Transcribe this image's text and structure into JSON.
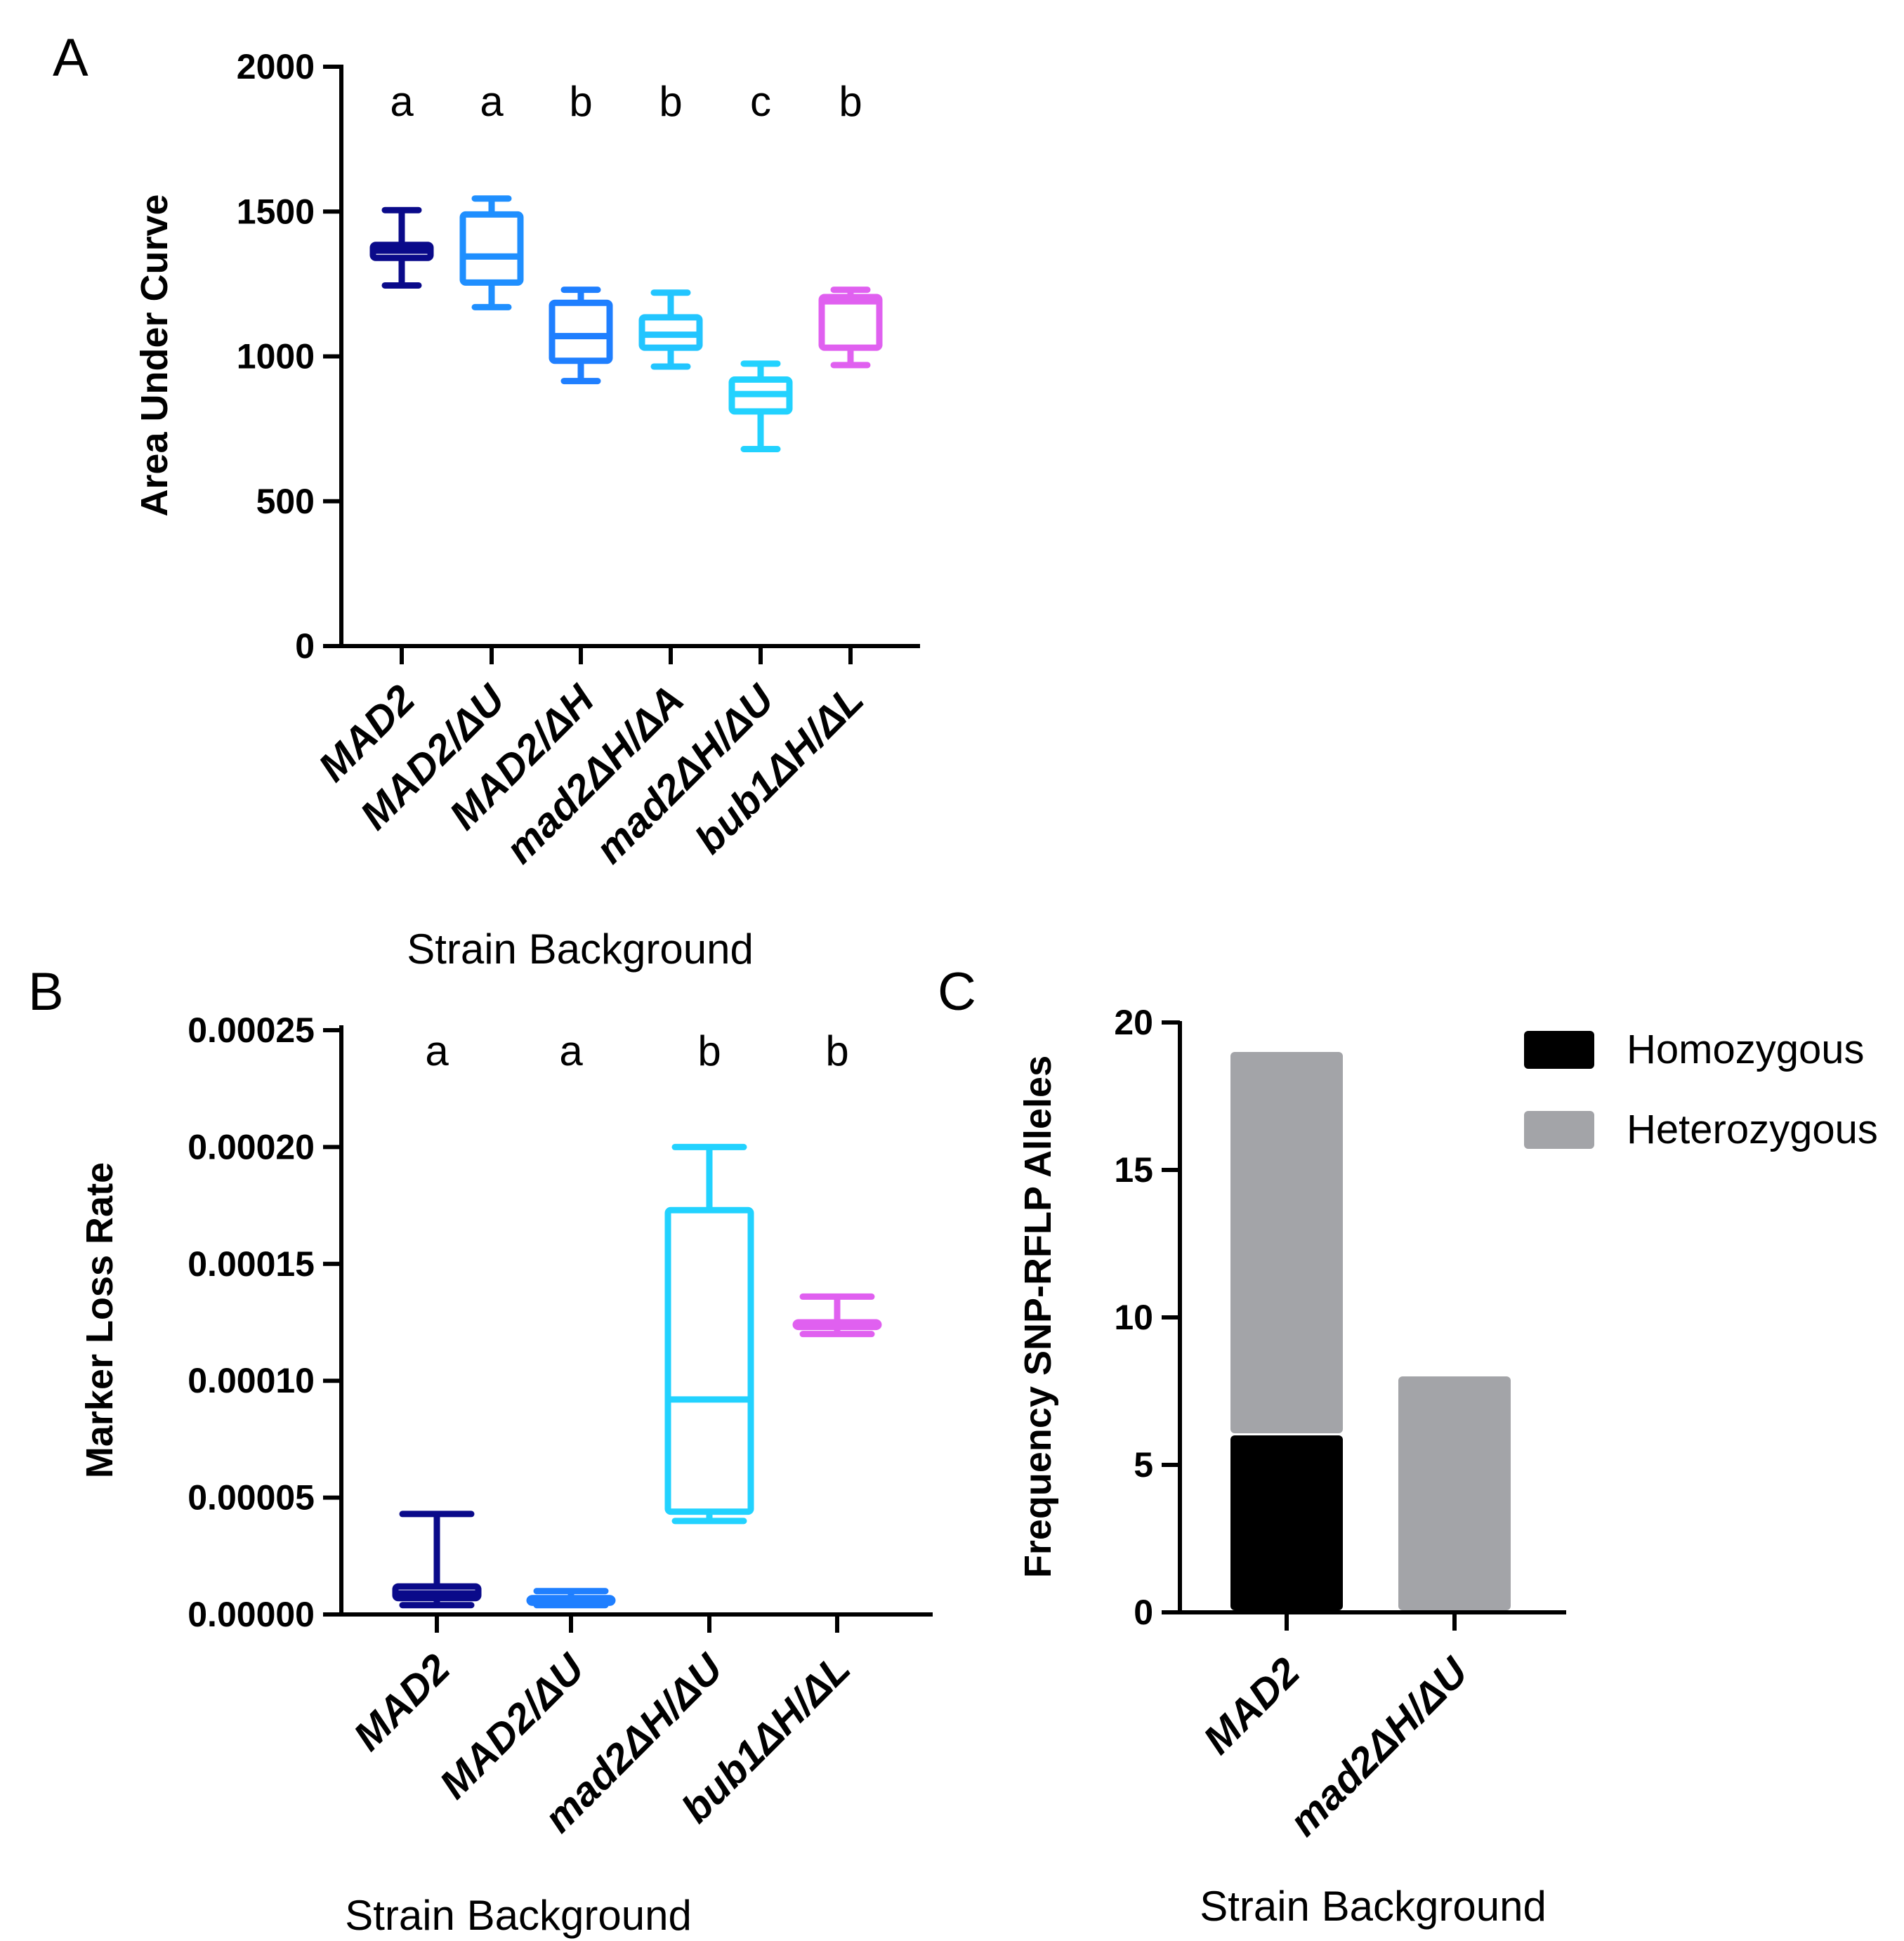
{
  "chart_data": [
    {
      "panel": "A",
      "type": "box",
      "ylabel": "Area Under Curve",
      "xlabel": "Strain Background",
      "ylim": [
        0,
        2000
      ],
      "yticks": [
        "0",
        "500",
        "1000",
        "1500",
        "2000"
      ],
      "categories": [
        "MAD2",
        "MAD2/ΔU",
        "MAD2/ΔH",
        "mad2ΔH/ΔA",
        "mad2ΔH/ΔU",
        "bub1ΔH/ΔL"
      ],
      "letters": [
        "a",
        "a",
        "b",
        "b",
        "c",
        "b"
      ],
      "colors": [
        "#0a0a8a",
        "#1f8fff",
        "#1f7fff",
        "#22c5ff",
        "#22d2ff",
        "#e060f0"
      ],
      "boxes": [
        {
          "min": 1245,
          "q1": 1340,
          "median": 1365,
          "q3": 1385,
          "max": 1505
        },
        {
          "min": 1170,
          "q1": 1255,
          "median": 1345,
          "q3": 1490,
          "max": 1545
        },
        {
          "min": 915,
          "q1": 985,
          "median": 1070,
          "q3": 1185,
          "max": 1230
        },
        {
          "min": 965,
          "q1": 1030,
          "median": 1075,
          "q3": 1135,
          "max": 1220
        },
        {
          "min": 680,
          "q1": 810,
          "median": 870,
          "q3": 920,
          "max": 975
        },
        {
          "min": 970,
          "q1": 1030,
          "median": 1190,
          "q3": 1205,
          "max": 1230
        }
      ]
    },
    {
      "panel": "B",
      "type": "box",
      "ylabel": "Marker Loss Rate",
      "xlabel": "Strain Background",
      "ylim": [
        0,
        0.00025
      ],
      "yticks": [
        "0.00000",
        "0.00005",
        "0.00010",
        "0.00015",
        "0.00020",
        "0.00025"
      ],
      "categories": [
        "MAD2",
        "MAD2/ΔU",
        "mad2ΔH/ΔU",
        "bub1ΔH/ΔL"
      ],
      "letters": [
        "a",
        "a",
        "b",
        "b"
      ],
      "colors": [
        "#0a0a8a",
        "#1f7fff",
        "#22d2ff",
        "#e060f0"
      ],
      "boxes": [
        {
          "min": 4e-06,
          "q1": 7e-06,
          "median": 9e-06,
          "q3": 1.2e-05,
          "max": 4.3e-05
        },
        {
          "min": 4e-06,
          "q1": 5e-06,
          "median": 6e-06,
          "q3": 7e-06,
          "max": 1e-05
        },
        {
          "min": 4e-05,
          "q1": 4.4e-05,
          "median": 9.2e-05,
          "q3": 0.000173,
          "max": 0.0002
        },
        {
          "min": 0.00012,
          "q1": 0.000123,
          "median": 0.000124,
          "q3": 0.000125,
          "max": 0.000136
        }
      ]
    },
    {
      "panel": "C",
      "type": "stacked-bar",
      "ylabel": "Frequency SNP-RFLP Alleles",
      "xlabel": "Strain Background",
      "ylim": [
        0,
        20
      ],
      "yticks": [
        "0",
        "5",
        "10",
        "15",
        "20"
      ],
      "categories": [
        "MAD2",
        "mad2ΔH/ΔU"
      ],
      "series": [
        {
          "name": "Homozygous",
          "color": "#000000",
          "values": [
            6,
            0
          ]
        },
        {
          "name": "Heterozygous",
          "color": "#a3a4a8",
          "values": [
            13,
            8
          ]
        }
      ],
      "legend": "top-right"
    }
  ]
}
